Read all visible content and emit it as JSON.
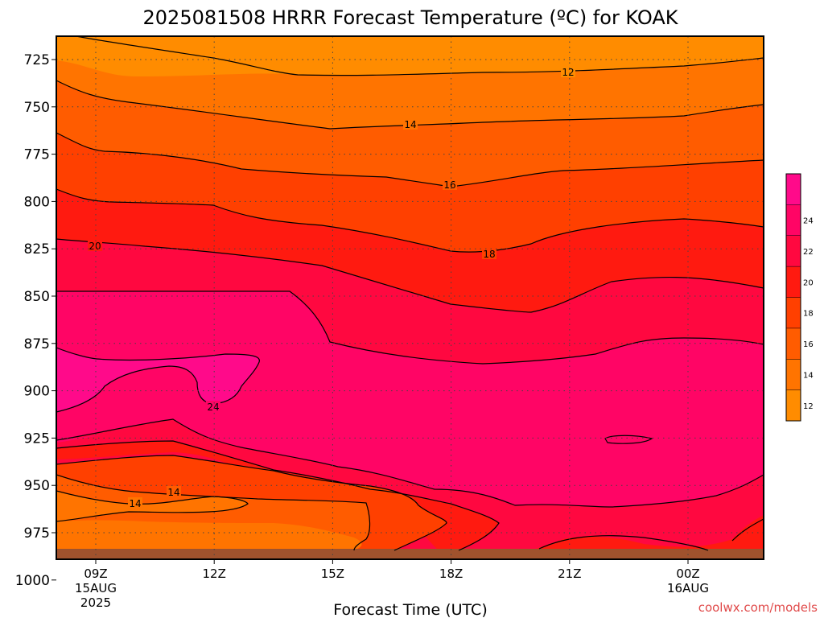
{
  "chart_data": {
    "type": "heatmap",
    "title": "2025081508 HRRR Forecast Temperature (ºC) for KOAK",
    "xlabel": "Forecast Time (UTC)",
    "ylabel": "",
    "y_levels": [
      725,
      750,
      775,
      800,
      825,
      850,
      875,
      900,
      925,
      950,
      975,
      1000
    ],
    "y_reversed": true,
    "x_ticks": [
      {
        "label": "09Z",
        "sub": [
          "15AUG",
          "2025"
        ]
      },
      {
        "label": "12Z",
        "sub": []
      },
      {
        "label": "15Z",
        "sub": []
      },
      {
        "label": "18Z",
        "sub": []
      },
      {
        "label": "21Z",
        "sub": []
      },
      {
        "label": "00Z",
        "sub": [
          "16AUG"
        ]
      }
    ],
    "grid": true,
    "colorbar": {
      "ticks": [
        12,
        14,
        16,
        18,
        20,
        22,
        24
      ],
      "colors": [
        "#ff8c00",
        "#ff7400",
        "#ff5c00",
        "#ff4000",
        "#ff1a10",
        "#ff0840",
        "#ff0565",
        "#ff0a8a"
      ]
    },
    "contour_labels": [
      "12",
      "14",
      "16",
      "18",
      "20",
      "24",
      "14",
      "14"
    ],
    "credit": "coolwx.com/models"
  }
}
